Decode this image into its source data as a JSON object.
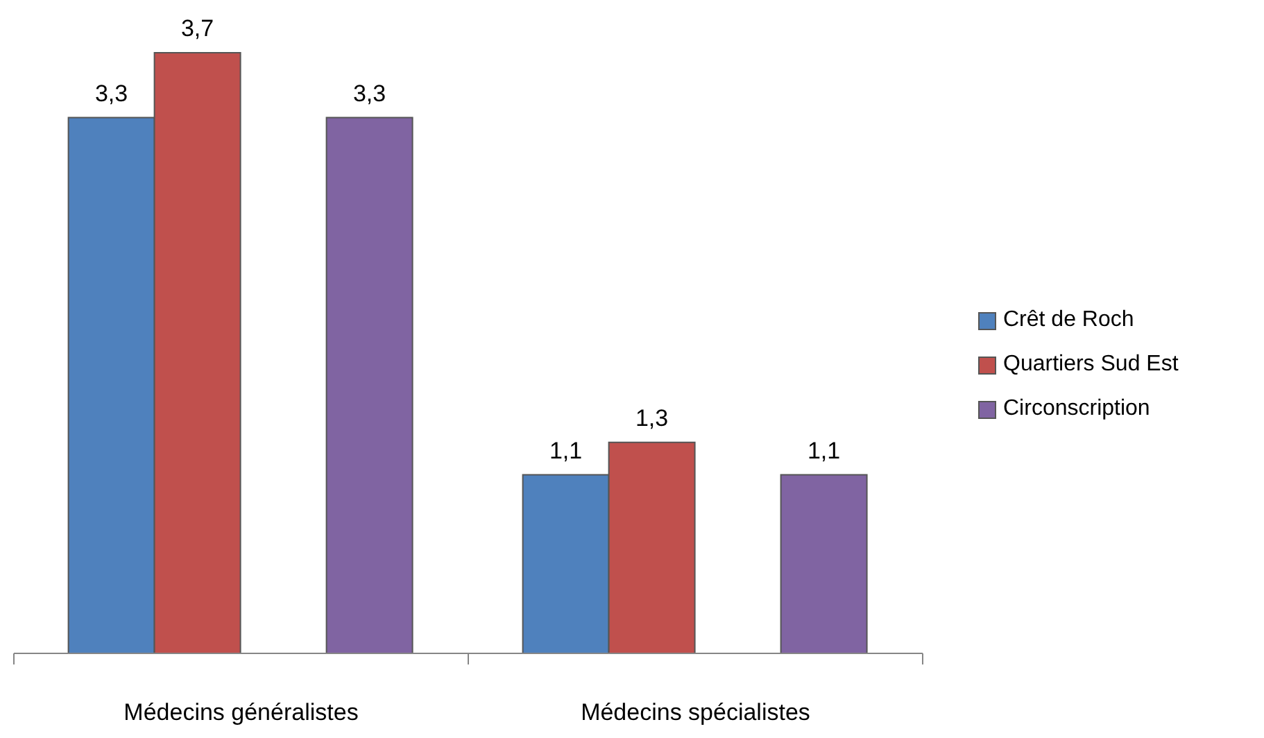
{
  "chart_data": {
    "type": "bar",
    "categories": [
      "Médecins généralistes",
      "Médecins spécialistes"
    ],
    "series": [
      {
        "name": "Crêt de Roch",
        "color": "#4f81bd",
        "values": [
          3.3,
          1.1
        ],
        "value_labels": [
          "3,3",
          "1,1"
        ]
      },
      {
        "name": "Quartiers Sud Est",
        "color": "#c0504d",
        "values": [
          3.7,
          1.3
        ],
        "value_labels": [
          "3,7",
          "1,3"
        ]
      },
      {
        "values": [
          null,
          null
        ]
      },
      {
        "name": "Circonscription",
        "color": "#8064a2",
        "values": [
          3.3,
          1.1
        ],
        "value_labels": [
          "3,3",
          "1,1"
        ]
      }
    ],
    "legend": "right"
  }
}
